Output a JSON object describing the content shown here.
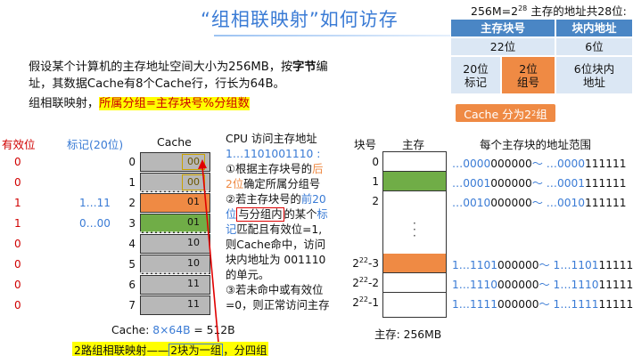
{
  "title": "“组相联映射”如何访存",
  "intro": {
    "line1": "假设某个计算机的主存地址空间大小为256MB，按",
    "line1_bold": "字节",
    "line1_end": "编",
    "line2": "址，其数据Cache有8个Cache行，行长为64B。"
  },
  "formula": {
    "prefix": "组相联映射，",
    "highlight": "所属分组=主存块号%分组数"
  },
  "addr_table": {
    "title_pre": "256M=2",
    "title_exp": "28",
    "title_post": " 主存的地址共28位:",
    "headers": [
      "主存块号",
      "块内地址"
    ],
    "row1": [
      "22位",
      "6位"
    ],
    "row2": [
      "20位\n标记",
      "2位\n组号",
      "6位块内\n地址"
    ]
  },
  "cache_tag": {
    "pre": "Cache 分为2",
    "exp": "2",
    "post": "组"
  },
  "left_headers": {
    "valid": "有效位",
    "tag": "标记(20位)",
    "cache": "Cache"
  },
  "cache_rows": [
    {
      "idx": "0",
      "valid": "0",
      "tag": "",
      "bits": "00",
      "color": "#b8b8b8"
    },
    {
      "idx": "1",
      "valid": "0",
      "tag": "",
      "bits": "00",
      "color": "#b8b8b8"
    },
    {
      "idx": "2",
      "valid": "1",
      "tag": "1…11",
      "bits": "01",
      "color": "#ef8a44"
    },
    {
      "idx": "3",
      "valid": "1",
      "tag": "0…00",
      "bits": "01",
      "color": "#70ad47"
    },
    {
      "idx": "4",
      "valid": "0",
      "tag": "",
      "bits": "10",
      "color": "#b8b8b8"
    },
    {
      "idx": "5",
      "valid": "0",
      "tag": "",
      "bits": "10",
      "color": "#b8b8b8"
    },
    {
      "idx": "6",
      "valid": "0",
      "tag": "",
      "bits": "11",
      "color": "#b8b8b8"
    },
    {
      "idx": "7",
      "valid": "0",
      "tag": "",
      "bits": "11",
      "color": "#b8b8b8"
    }
  ],
  "cache_caption": {
    "pre": "Cache: ",
    "colored": "8×64B",
    "post": " = 512B"
  },
  "cpu": {
    "l1": "CPU 访问主存地址",
    "l2": "1…1101001110 :",
    "l3a": "①根据主存块号的",
    "l3b": "后",
    "l4a": "2位",
    "l4b": "确定所属分组号",
    "l5a": "②若主存块号的",
    "l5b": "前20",
    "l6a": "位",
    "l6b": "与分组内",
    "l6c": "的某个",
    "l6d": "标",
    "l7a": "记",
    "l7b": "匹配且有效位=1,",
    "l8": "则Cache命中，访问",
    "l9": "块内地址为 001110",
    "l10": "的单元。",
    "l11": "③若未命中或有效位",
    "l12": "=0，则正常访问主存"
  },
  "memory": {
    "hdr_block": "块号",
    "hdr_mem": "主存",
    "hdr_range": "每个主存块的地址范围",
    "caption": "主存:  256MB",
    "rows": [
      {
        "blk": "0",
        "exp": "",
        "suffix": "",
        "color": "#ffffff",
        "a1": "…0000",
        "b1": "000000",
        "a2": "～ …0000",
        "b2": "111111"
      },
      {
        "blk": "1",
        "exp": "",
        "suffix": "",
        "color": "#70ad47",
        "a1": "…0001",
        "b1": "000000",
        "a2": "～ …0001",
        "b2": "111111"
      },
      {
        "blk": "2",
        "exp": "",
        "suffix": "",
        "color": "#ffffff",
        "a1": "…0010",
        "b1": "000000",
        "a2": "～ …0010",
        "b2": "111111"
      },
      {
        "blk": "2",
        "exp": "22",
        "suffix": "-3",
        "color": "#ef8a44",
        "a1": "1…1101",
        "b1": "000000",
        "a2": "～ 1…1101",
        "b2": "111111"
      },
      {
        "blk": "2",
        "exp": "22",
        "suffix": "-2",
        "color": "#ffffff",
        "a1": "1…1110",
        "b1": "000000",
        "a2": "～ 1…1110",
        "b2": "111111"
      },
      {
        "blk": "2",
        "exp": "22",
        "suffix": "-1",
        "color": "#ffffff",
        "a1": "1…1111",
        "b1": "000000",
        "a2": "～ 1…1111",
        "b2": "111111"
      }
    ]
  },
  "bottom_note": {
    "pre": "2路组相联映射——",
    "boxed": "2块为一组",
    "post": "，分四组"
  }
}
